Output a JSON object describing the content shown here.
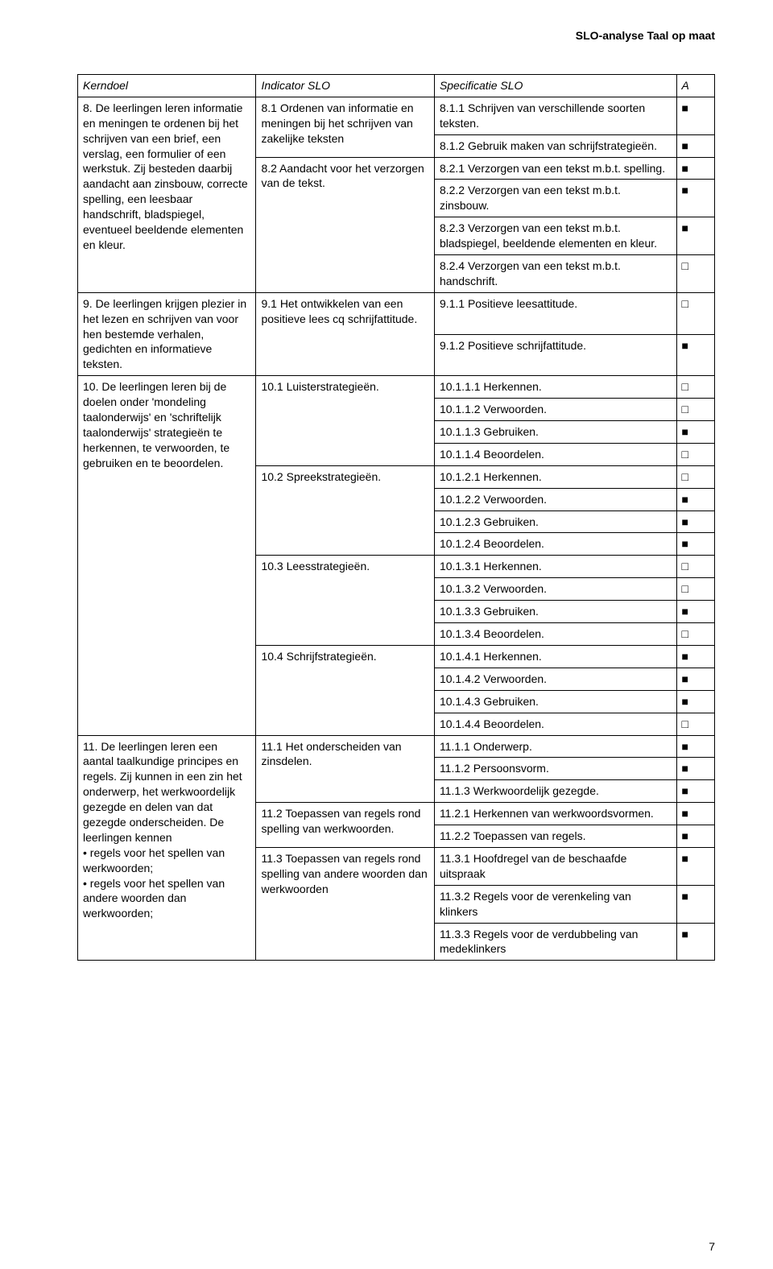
{
  "header": {
    "title": "SLO-analyse Taal op maat"
  },
  "markers": {
    "filled": "■",
    "empty": "□"
  },
  "columns": {
    "k": "Kerndoel",
    "i": "Indicator SLO",
    "s": "Specificatie SLO",
    "a": "A"
  },
  "groups": [
    {
      "k": "8. De leerlingen leren informatie en meningen te ordenen bij het schrijven van een brief, een verslag, een formulier of een werkstuk. Zij besteden daarbij aandacht aan zinsbouw, correcte spelling, een leesbaar handschrift, bladspiegel, eventueel beeldende elementen en kleur.",
      "inds": [
        {
          "i": "8.1 Ordenen van informatie en meningen bij het schrijven van zakelijke teksten",
          "specs": [
            {
              "s": "8.1.1 Schrijven van verschillende soorten teksten.",
              "a": "filled"
            },
            {
              "s": "8.1.2 Gebruik maken van schrijfstrategieën.",
              "a": "filled"
            }
          ]
        },
        {
          "i": "8.2 Aandacht voor het verzorgen van de tekst.",
          "specs": [
            {
              "s": "8.2.1 Verzorgen van een tekst m.b.t. spelling.",
              "a": "filled"
            },
            {
              "s": "8.2.2 Verzorgen van een tekst m.b.t. zinsbouw.",
              "a": "filled"
            },
            {
              "s": "8.2.3 Verzorgen van een tekst m.b.t. bladspiegel, beeldende elementen en kleur.",
              "a": "filled"
            },
            {
              "s": "8.2.4 Verzorgen van een tekst m.b.t. handschrift.",
              "a": "empty"
            }
          ]
        }
      ]
    },
    {
      "k": "9. De leerlingen krijgen plezier in het lezen en schrijven van voor hen bestemde verhalen, gedichten en informatieve teksten.",
      "inds": [
        {
          "i": "9.1 Het ontwikkelen van een positieve lees cq schrijfattitude.",
          "specs": [
            {
              "s": "9.1.1 Positieve leesattitude.",
              "a": "empty"
            },
            {
              "s": "9.1.2 Positieve schrijfattitude.",
              "a": "filled"
            }
          ]
        }
      ]
    },
    {
      "k": "10. De leerlingen leren bij de doelen onder 'mondeling taalonderwijs' en 'schriftelijk taalonderwijs' strategieën te herkennen, te verwoorden, te gebruiken en te beoordelen.",
      "inds": [
        {
          "i": "10.1 Luisterstrategieën.",
          "specs": [
            {
              "s": "10.1.1.1 Herkennen.",
              "a": "empty"
            },
            {
              "s": "10.1.1.2 Verwoorden.",
              "a": "empty"
            },
            {
              "s": "10.1.1.3 Gebruiken.",
              "a": "filled"
            },
            {
              "s": "10.1.1.4 Beoordelen.",
              "a": "empty"
            }
          ]
        },
        {
          "i": "10.2 Spreekstrategieën.",
          "specs": [
            {
              "s": "10.1.2.1 Herkennen.",
              "a": "empty"
            },
            {
              "s": "10.1.2.2 Verwoorden.",
              "a": "filled"
            },
            {
              "s": "10.1.2.3 Gebruiken.",
              "a": "filled"
            },
            {
              "s": "10.1.2.4 Beoordelen.",
              "a": "filled"
            }
          ]
        },
        {
          "i": "10.3 Leesstrategieën.",
          "specs": [
            {
              "s": "10.1.3.1 Herkennen.",
              "a": "empty"
            },
            {
              "s": "10.1.3.2 Verwoorden.",
              "a": "empty"
            },
            {
              "s": "10.1.3.3 Gebruiken.",
              "a": "filled"
            },
            {
              "s": "10.1.3.4 Beoordelen.",
              "a": "empty"
            }
          ]
        },
        {
          "i": "10.4 Schrijfstrategieën.",
          "specs": [
            {
              "s": "10.1.4.1 Herkennen.",
              "a": "filled"
            },
            {
              "s": "10.1.4.2 Verwoorden.",
              "a": "filled"
            },
            {
              "s": "10.1.4.3 Gebruiken.",
              "a": "filled"
            },
            {
              "s": "10.1.4.4 Beoordelen.",
              "a": "empty"
            }
          ]
        }
      ]
    },
    {
      "k": "11. De leerlingen leren een aantal taalkundige principes en regels. Zij kunnen in een zin het onderwerp, het werkwoordelijk gezegde en delen van dat gezegde onderscheiden. De leerlingen kennen\n• regels voor het spellen van werkwoorden;\n• regels voor het spellen van andere woorden dan werkwoorden;",
      "inds": [
        {
          "i": "11.1 Het onderscheiden van zinsdelen.",
          "specs": [
            {
              "s": "11.1.1 Onderwerp.",
              "a": "filled"
            },
            {
              "s": "11.1.2 Persoonsvorm.",
              "a": "filled"
            },
            {
              "s": "11.1.3 Werkwoordelijk gezegde.",
              "a": "filled"
            }
          ]
        },
        {
          "i": "11.2 Toepassen van regels rond spelling van werkwoorden.",
          "specs": [
            {
              "s": "11.2.1 Herkennen van werkwoordsvormen.",
              "a": "filled"
            },
            {
              "s": "11.2.2 Toepassen van regels.",
              "a": "filled"
            }
          ]
        },
        {
          "i": "11.3 Toepassen van regels rond spelling van andere woorden dan werkwoorden",
          "specs": [
            {
              "s": "11.3.1 Hoofdregel van de beschaafde uitspraak",
              "a": "filled"
            },
            {
              "s": "11.3.2 Regels voor de verenkeling van klinkers",
              "a": "filled"
            },
            {
              "s": "11.3.3 Regels voor de verdubbeling van medeklinkers",
              "a": "filled"
            }
          ]
        }
      ]
    }
  ],
  "footer": {
    "page": "7"
  }
}
